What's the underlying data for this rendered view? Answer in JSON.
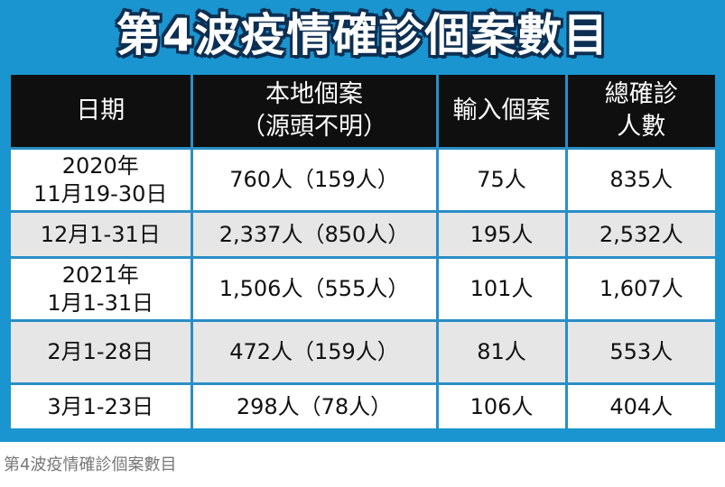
{
  "title": "第4波疫情確診個案數目",
  "headers": {
    "date": "日期",
    "local_line1": "本地個案",
    "local_line2": "（源頭不明）",
    "imported": "輸入個案",
    "total_line1": "總確診",
    "total_line2": "人數"
  },
  "rows": [
    {
      "date_line1": "2020年",
      "date_line2": "11月19-30日",
      "local": "760人（159人）",
      "imported": "75人",
      "total": "835人"
    },
    {
      "date_line1": "12月1-31日",
      "date_line2": "",
      "local": "2,337人（850人）",
      "imported": "195人",
      "total": "2,532人"
    },
    {
      "date_line1": "2021年",
      "date_line2": "1月1-31日",
      "local": "1,506人（555人）",
      "imported": "101人",
      "total": "1,607人"
    },
    {
      "date_line1": "2月1-28日",
      "date_line2": "",
      "local": "472人（159人）",
      "imported": "81人",
      "total": "553人"
    },
    {
      "date_line1": "3月1-23日",
      "date_line2": "",
      "local": "298人（78人）",
      "imported": "106人",
      "total": "404人"
    }
  ],
  "caption": "第4波疫情確診個案數目",
  "colors": {
    "background": "#1a95d0",
    "header": "#0f0f0f",
    "title_outline": "#0c2f52",
    "row_alt": "#e6e6e6"
  }
}
